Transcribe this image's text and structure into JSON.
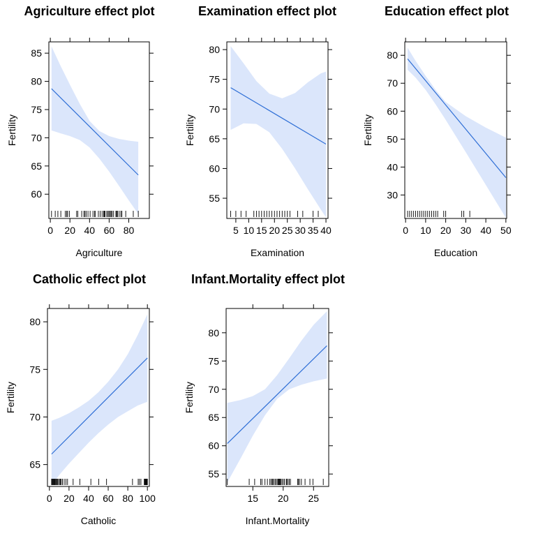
{
  "colors": {
    "line": "#2f6fd6",
    "band": "#dbe6fb",
    "axis": "#000000",
    "background": "#ffffff"
  },
  "chart_data": [
    {
      "type": "line",
      "title": "Agriculture effect plot",
      "xlabel": "Agriculture",
      "ylabel": "Fertility",
      "xlim": [
        -1.5,
        101
      ],
      "ylim": [
        55.7,
        87
      ],
      "xticks": [
        0,
        20,
        40,
        60,
        80
      ],
      "xtick_labels": [
        "0",
        "20",
        "40",
        "60",
        "80"
      ],
      "yticks": [
        60,
        65,
        70,
        75,
        80,
        85
      ],
      "ytick_labels": [
        "60",
        "65",
        "70",
        "75",
        "80",
        "85"
      ],
      "x": [
        1.2,
        89.7
      ],
      "y": [
        78.7,
        63.4
      ],
      "band_x": [
        1.2,
        10,
        20,
        30,
        40,
        50,
        60,
        70,
        80,
        89.7
      ],
      "band_lower": [
        71.3,
        70.8,
        70.3,
        69.6,
        68.3,
        66.3,
        64.0,
        61.5,
        58.9,
        56.5
      ],
      "band_upper": [
        86.2,
        82.9,
        79.4,
        76.0,
        73.0,
        71.2,
        70.3,
        69.8,
        69.5,
        69.3
      ],
      "rug": [
        1.2,
        5,
        7.7,
        10.7,
        15.2,
        16.7,
        17.6,
        19.4,
        26.8,
        28,
        32,
        34.2,
        35.3,
        36.5,
        38.4,
        40.6,
        43.5,
        45.2,
        45.7,
        49,
        50.9,
        52.8,
        54.4,
        55.1,
        55.9,
        57.7,
        58.1,
        59.6,
        60.1,
        61.3,
        62,
        63.1,
        64.5,
        66.9,
        67,
        67.8,
        68.5,
        70.2,
        71.9,
        73,
        76.9,
        84.6,
        89.7
      ],
      "grid": false,
      "legend": "none"
    },
    {
      "type": "line",
      "title": "Examination effect plot",
      "xlabel": "Examination",
      "ylabel": "Fertility",
      "xlim": [
        1.5,
        40.8
      ],
      "ylim": [
        51.6,
        81.3
      ],
      "xticks": [
        5,
        10,
        15,
        20,
        25,
        30,
        35,
        40
      ],
      "xtick_labels": [
        "5",
        "10",
        "15",
        "20",
        "25",
        "30",
        "35",
        "40"
      ],
      "yticks": [
        55,
        60,
        65,
        70,
        75,
        80
      ],
      "ytick_labels": [
        "55",
        "60",
        "65",
        "70",
        "75",
        "80"
      ],
      "x": [
        3,
        40
      ],
      "y": [
        73.6,
        64.1
      ],
      "band_x": [
        3,
        8,
        13,
        18,
        23,
        28,
        33,
        38,
        40
      ],
      "band_lower": [
        66.5,
        67.6,
        67.5,
        66.1,
        63.3,
        60.0,
        56.5,
        53.1,
        51.8
      ],
      "band_upper": [
        80.6,
        77.7,
        74.7,
        72.6,
        71.8,
        72.7,
        74.5,
        76.0,
        76.3
      ],
      "rug": [
        3,
        5,
        7,
        9,
        12,
        13,
        14,
        15,
        16,
        17,
        18,
        19,
        20,
        21,
        22,
        23,
        24,
        25,
        26,
        29,
        31,
        35,
        37
      ],
      "grid": false,
      "legend": "none"
    },
    {
      "type": "line",
      "title": "Education effect plot",
      "xlabel": "Education",
      "ylabel": "Fertility",
      "xlim": [
        -0.4,
        50.4
      ],
      "ylim": [
        21.6,
        84.8
      ],
      "xticks": [
        0,
        10,
        20,
        30,
        40,
        50
      ],
      "xtick_labels": [
        "0",
        "10",
        "20",
        "30",
        "40",
        "50"
      ],
      "yticks": [
        30,
        40,
        50,
        60,
        70,
        80
      ],
      "ytick_labels": [
        "30",
        "40",
        "50",
        "60",
        "70",
        "80"
      ],
      "x": [
        1,
        50
      ],
      "y": [
        78.7,
        36.2
      ],
      "band_x": [
        1,
        5,
        10,
        15,
        20,
        30,
        40,
        50
      ],
      "band_lower": [
        74.8,
        72.0,
        67.6,
        62.4,
        56.9,
        45.3,
        33.6,
        21.8
      ],
      "band_upper": [
        82.7,
        78.0,
        72.6,
        67.6,
        63.3,
        58.2,
        54.1,
        50.5
      ],
      "rug": [
        1,
        2,
        3,
        4,
        5,
        6,
        7,
        8,
        9,
        10,
        11,
        12,
        13,
        14,
        15,
        16,
        19,
        20,
        28,
        29,
        32
      ],
      "grid": false,
      "legend": "none"
    },
    {
      "type": "line",
      "title": "Catholic effect plot",
      "xlabel": "Catholic",
      "ylabel": "Fertility",
      "xlim": [
        -2,
        102
      ],
      "ylim": [
        62.7,
        81.4
      ],
      "xticks": [
        0,
        20,
        40,
        60,
        80,
        100
      ],
      "xtick_labels": [
        "0",
        "20",
        "40",
        "60",
        "80",
        "100"
      ],
      "yticks": [
        65,
        70,
        75,
        80
      ],
      "ytick_labels": [
        "65",
        "70",
        "75",
        "80"
      ],
      "x": [
        2.2,
        100
      ],
      "y": [
        66.1,
        76.2
      ],
      "band_x": [
        2.2,
        10,
        20,
        30,
        40,
        50,
        60,
        70,
        80,
        90,
        100
      ],
      "band_lower": [
        62.8,
        63.9,
        65.1,
        66.2,
        67.3,
        68.3,
        69.2,
        70.0,
        70.6,
        71.2,
        71.6
      ],
      "band_upper": [
        69.6,
        69.9,
        70.4,
        71.0,
        71.7,
        72.6,
        73.7,
        75.0,
        76.6,
        78.6,
        80.8
      ],
      "rug": [
        2.2,
        2.8,
        3.3,
        4,
        4.5,
        5.2,
        5.8,
        6.1,
        7,
        7.7,
        8.5,
        9.2,
        10.5,
        11.2,
        12.1,
        13.3,
        15.1,
        16.9,
        18.5,
        24.2,
        31,
        42.3,
        50.4,
        58.3,
        84.8,
        90.6,
        91.9,
        93.4,
        96.8,
        97.2,
        97.7,
        98.2,
        98.6,
        99.1,
        99.5,
        100
      ],
      "grid": false,
      "legend": "none"
    },
    {
      "type": "line",
      "title": "Infant.Mortality effect plot",
      "xlabel": "Infant.Mortality",
      "ylabel": "Fertility",
      "xlim": [
        10.6,
        27.5
      ],
      "ylim": [
        52.8,
        84.3
      ],
      "xticks": [
        15,
        20,
        25
      ],
      "xtick_labels": [
        "15",
        "20",
        "25"
      ],
      "yticks": [
        55,
        60,
        65,
        70,
        75,
        80
      ],
      "ytick_labels": [
        "55",
        "60",
        "65",
        "70",
        "75",
        "80"
      ],
      "x": [
        10.8,
        27.2
      ],
      "y": [
        60.4,
        77.7
      ],
      "band_x": [
        10.8,
        13,
        15,
        17,
        19,
        21,
        23,
        25,
        27.2
      ],
      "band_lower": [
        53.5,
        57.8,
        61.8,
        65.4,
        68.3,
        70.0,
        70.8,
        71.4,
        71.9
      ],
      "band_upper": [
        67.6,
        68.1,
        68.8,
        70.0,
        72.5,
        75.5,
        78.6,
        81.4,
        83.8
      ],
      "rug": [
        10.8,
        14.4,
        15.3,
        16.3,
        16.5,
        17.0,
        17.4,
        17.8,
        18.0,
        18.2,
        18.3,
        18.5,
        18.7,
        18.9,
        19.1,
        19.2,
        19.3,
        19.4,
        19.5,
        19.6,
        19.8,
        20.0,
        20.2,
        20.5,
        20.6,
        20.8,
        21.0,
        21.2,
        22.4,
        22.5,
        22.7,
        23.0,
        23.6,
        24.4,
        24.9,
        26.6
      ],
      "grid": false,
      "legend": "none"
    }
  ]
}
